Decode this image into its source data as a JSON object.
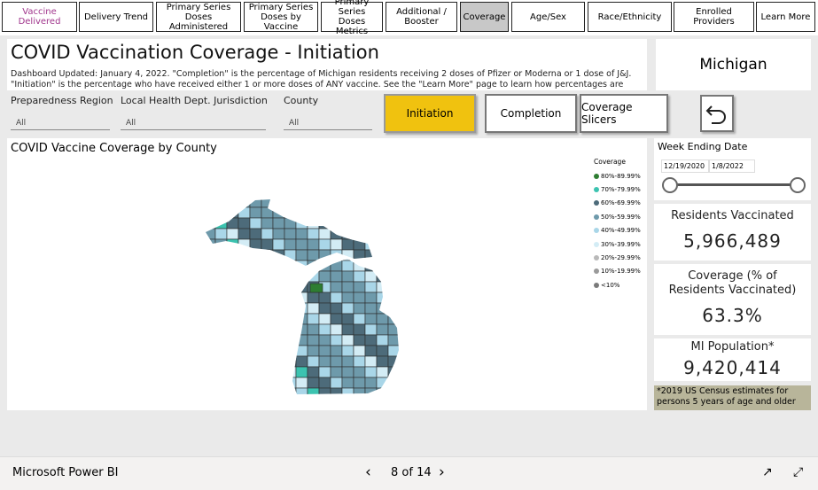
{
  "nav": {
    "tabs": [
      "Vaccine Delivered",
      "Delivery Trend",
      "Primary Series Doses Administered",
      "Primary Series Doses by Vaccine",
      "Primary Series Doses Metrics",
      "Additional / Booster",
      "Coverage",
      "Age/Sex",
      "Race/Ethnicity",
      "Enrolled Providers",
      "Learn More"
    ]
  },
  "header": {
    "title": "COVID Vaccination Coverage - Initiation",
    "description": "Dashboard Updated: January 4, 2022. \"Completion\" is the percentage of Michigan residents receiving 2 doses of Pfizer or Moderna or 1 dose of J&J. \"Initiation\" is the percentage who have received either 1 or more doses of ANY vaccine. See the \"Learn More\" page to learn how percentages are calculated."
  },
  "state": "Michigan",
  "filters": [
    {
      "label": "Preparedness Region",
      "value": "All"
    },
    {
      "label": "Local Health Dept. Jurisdiction",
      "value": "All"
    },
    {
      "label": "County",
      "value": "All"
    }
  ],
  "buttons": [
    "Initiation",
    "Completion",
    "Coverage Slicers"
  ],
  "map": {
    "title": "COVID Vaccine Coverage by County",
    "legend": {
      "title": "Coverage",
      "items": [
        {
          "label": "80%-89.99%",
          "color": "#2e7d32"
        },
        {
          "label": "70%-79.99%",
          "color": "#3cc3b0"
        },
        {
          "label": "60%-69.99%",
          "color": "#4d6b7a"
        },
        {
          "label": "50%-59.99%",
          "color": "#6e9aab"
        },
        {
          "label": "40%-49.99%",
          "color": "#a9d6e8"
        },
        {
          "label": "30%-39.99%",
          "color": "#d3ecf5"
        },
        {
          "label": "20%-29.99%",
          "color": "#b9b9b9"
        },
        {
          "label": "10%-19.99%",
          "color": "#9a9a9a"
        },
        {
          "label": "<10%",
          "color": "#7a7a7a"
        }
      ]
    }
  },
  "date_slicer": {
    "title": "Week Ending Date",
    "start": "12/19/2020",
    "end": "1/8/2022"
  },
  "cards": [
    {
      "title": "Residents Vaccinated",
      "value": "5,966,489"
    },
    {
      "title": "Coverage (% of Residents Vaccinated)",
      "value": "63.3%"
    },
    {
      "title": "MI Population*",
      "value": "9,420,414"
    }
  ],
  "note": "*2019 US Census estimates for persons 5 years of age and older",
  "footer": {
    "app": "Microsoft Power BI",
    "page": "8 of 14"
  }
}
